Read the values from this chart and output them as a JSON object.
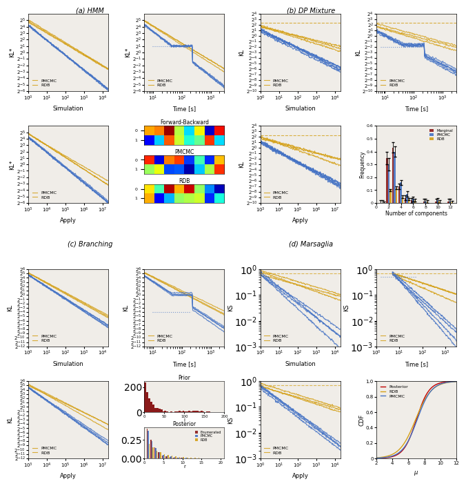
{
  "title_a": "(a) HMM",
  "title_b": "(b) DP Mixture",
  "title_c": "(c) Branching",
  "title_d": "(d) Marsaglia",
  "blue_color": "#4472C4",
  "orange_color": "#D4A017",
  "red_color": "#8B1A1A",
  "background": "#f5f5f0",
  "figure_bg": "#ffffff"
}
